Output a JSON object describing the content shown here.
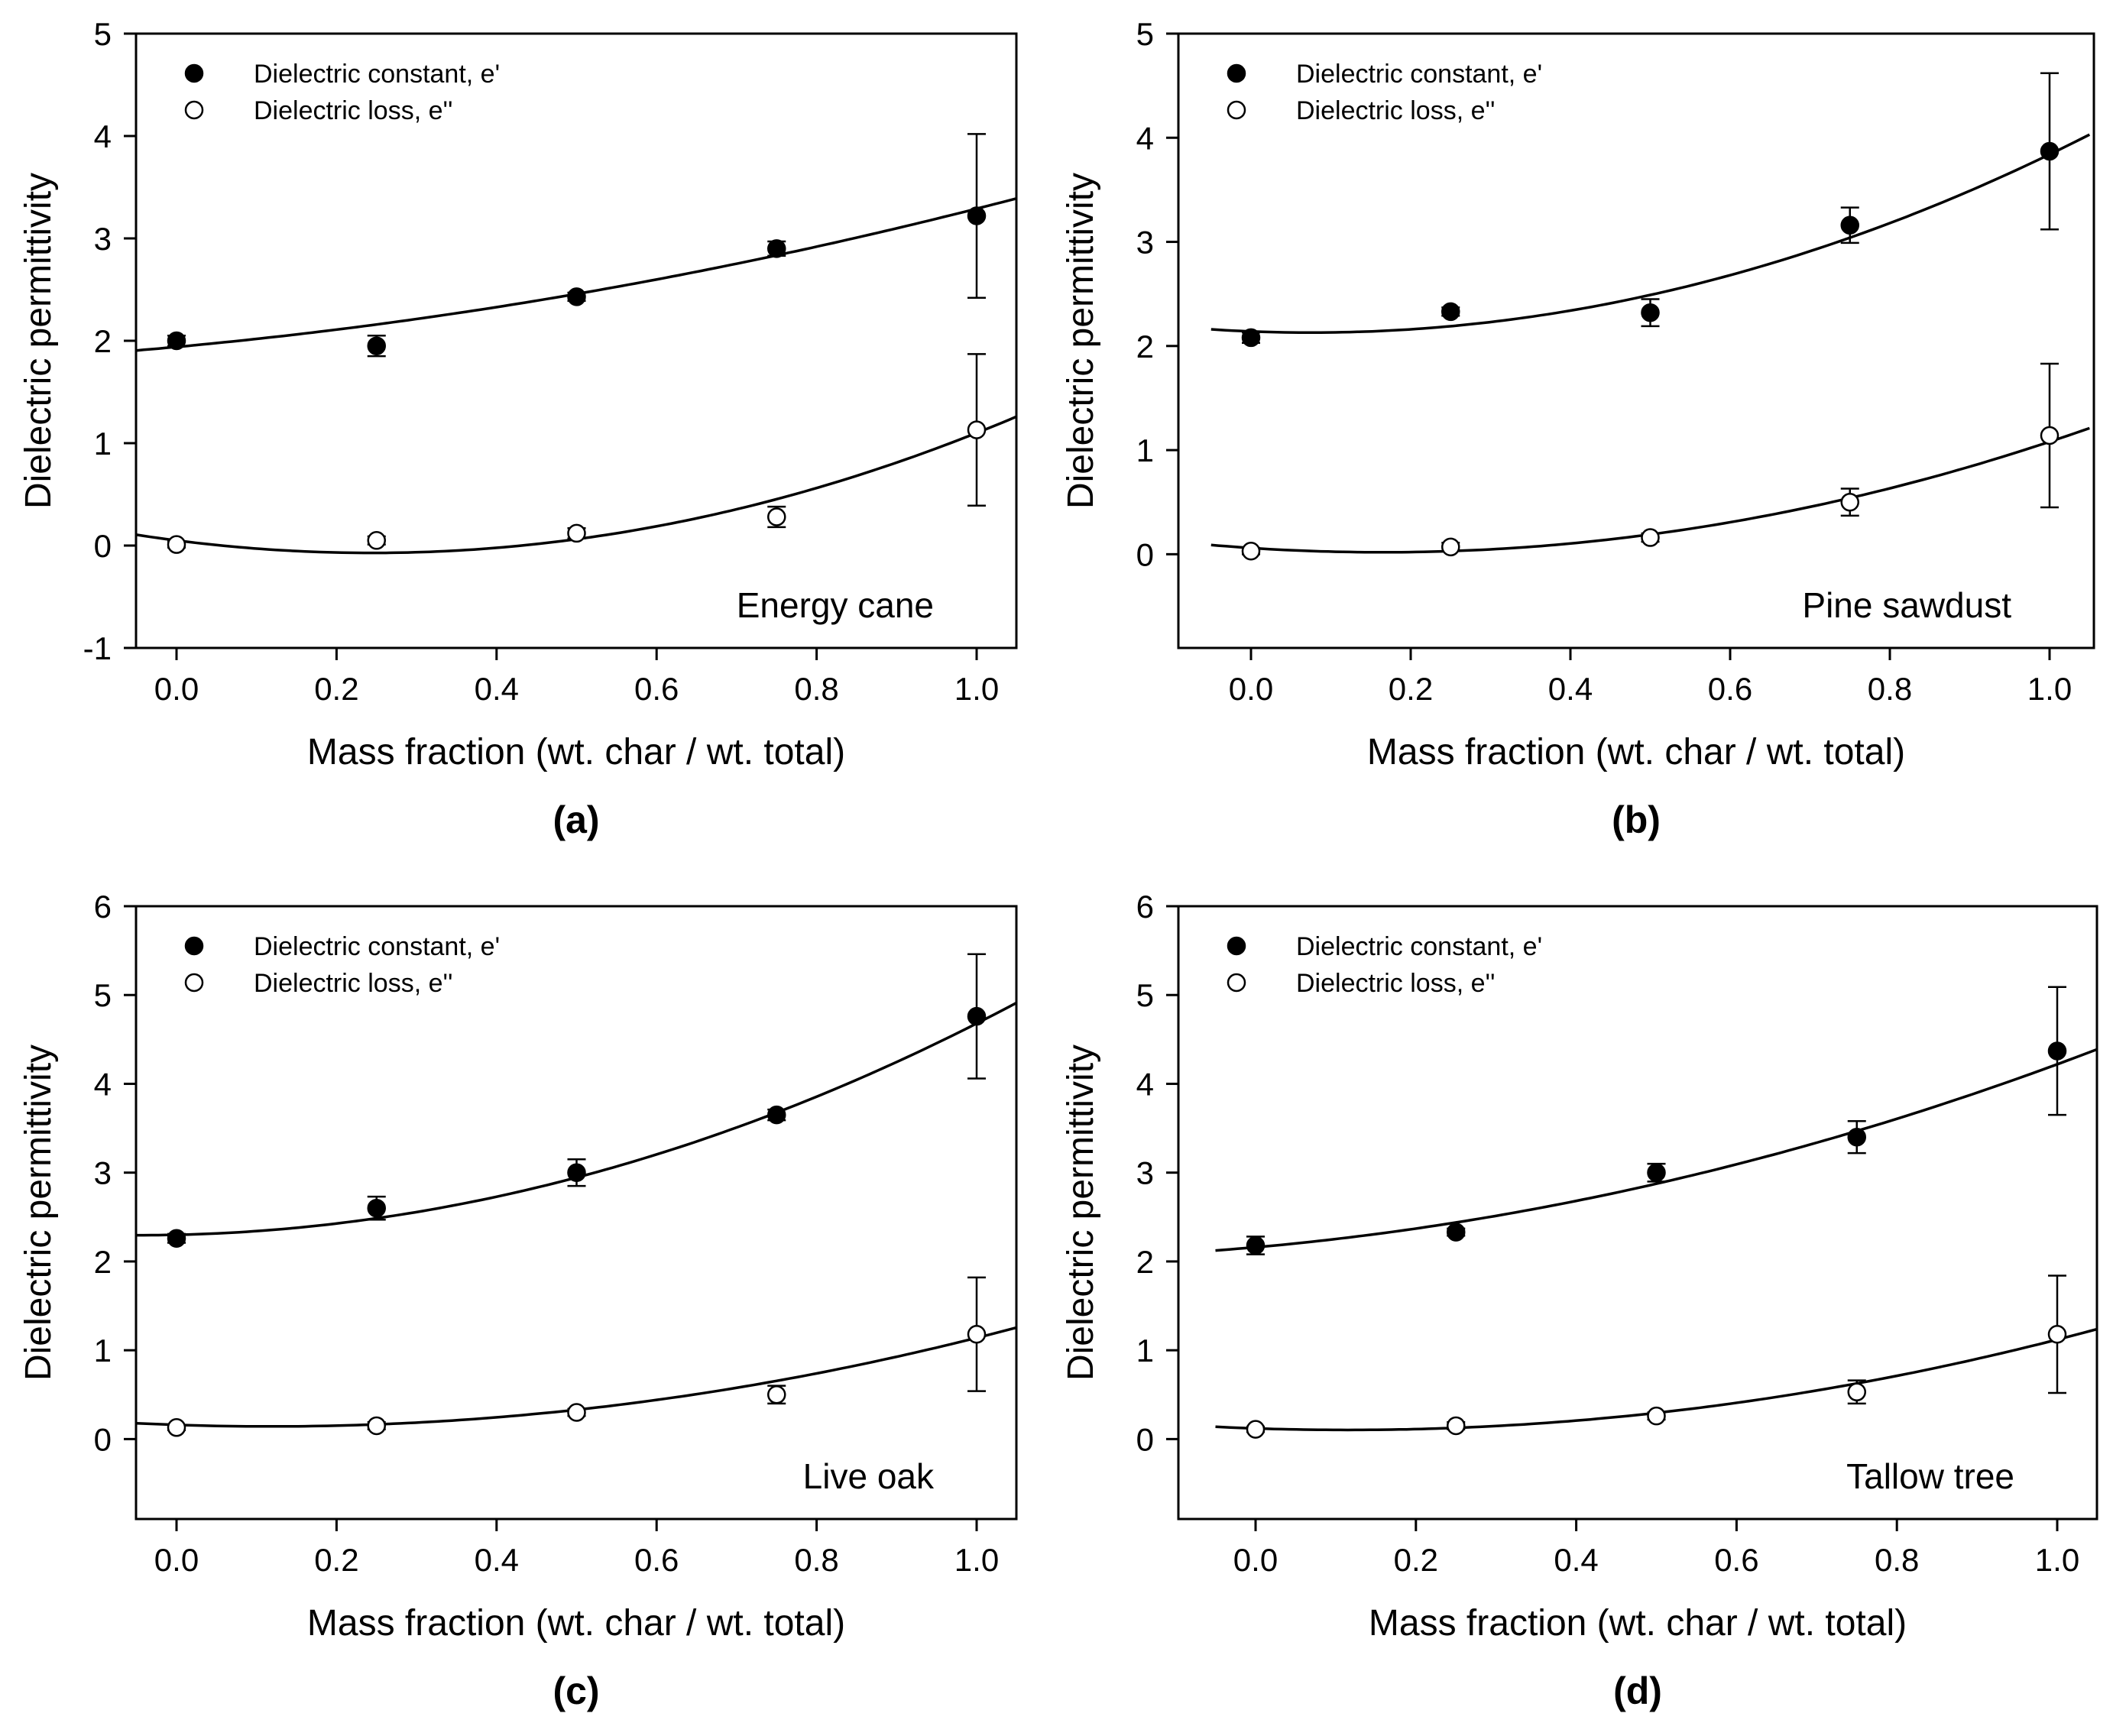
{
  "legend": {
    "constant_label": "Dielectric constant, e'",
    "loss_label": "Dielectric loss, e''"
  },
  "chart_data": [
    {
      "type": "scatter",
      "panel_label": "(a)",
      "annotation": "Energy cane",
      "xlabel": "Mass fraction (wt. char / wt. total)",
      "ylabel": "Dielectric permittivity",
      "xlim": [
        -0.05,
        1.05
      ],
      "ylim": [
        -1,
        5
      ],
      "xticks": [
        "0.0",
        "0.2",
        "0.4",
        "0.6",
        "0.8",
        "1.0"
      ],
      "yticks": [
        "-1",
        "0",
        "1",
        "2",
        "3",
        "4",
        "5"
      ],
      "x": [
        0,
        0.25,
        0.5,
        0.75,
        1.0
      ],
      "series": [
        {
          "name": "Dielectric constant, e'",
          "marker": "filled",
          "values": [
            2.0,
            1.95,
            2.43,
            2.9,
            3.22
          ],
          "errors": [
            0.05,
            0.1,
            0.04,
            0.07,
            0.8
          ],
          "fit": [
            1.94,
            0.72,
            0.63
          ]
        },
        {
          "name": "Dielectric loss, e''",
          "marker": "open",
          "values": [
            0.01,
            0.05,
            0.12,
            0.28,
            1.13
          ],
          "errors": [
            0.03,
            0.04,
            0.05,
            0.1,
            0.74
          ],
          "fit": [
            0.05,
            -1.0,
            2.05
          ]
        }
      ]
    },
    {
      "type": "scatter",
      "panel_label": "(b)",
      "annotation": "Pine sawdust",
      "xlabel": "Mass fraction (wt. char / wt. total)",
      "ylabel": "Dielectric permittivity",
      "xlim": [
        -0.05,
        1.05
      ],
      "ylim": [
        -0.9,
        5
      ],
      "xticks": [
        "0.0",
        "0.2",
        "0.4",
        "0.6",
        "0.8",
        "1.0"
      ],
      "yticks": [
        "0",
        "1",
        "2",
        "3",
        "4",
        "5"
      ],
      "x": [
        0,
        0.25,
        0.5,
        0.75,
        1.0
      ],
      "series": [
        {
          "name": "Dielectric constant, e'",
          "marker": "filled",
          "values": [
            2.08,
            2.33,
            2.32,
            3.16,
            3.87
          ],
          "errors": [
            0.05,
            0.04,
            0.13,
            0.17,
            0.75
          ],
          "fit": [
            2.14,
            -0.3,
            2.0
          ]
        },
        {
          "name": "Dielectric loss, e''",
          "marker": "open",
          "values": [
            0.03,
            0.07,
            0.16,
            0.5,
            1.14
          ],
          "errors": [
            0.03,
            0.04,
            0.04,
            0.13,
            0.69
          ],
          "fit": [
            0.06,
            -0.5,
            1.52
          ]
        }
      ]
    },
    {
      "type": "scatter",
      "panel_label": "(c)",
      "annotation": "Live oak",
      "xlabel": "Mass fraction (wt. char / wt. total)",
      "ylabel": "Dielectric permittivity",
      "xlim": [
        -0.05,
        1.05
      ],
      "ylim": [
        -0.9,
        6
      ],
      "xticks": [
        "0.0",
        "0.2",
        "0.4",
        "0.6",
        "0.8",
        "1.0"
      ],
      "yticks": [
        "0",
        "1",
        "2",
        "3",
        "4",
        "5",
        "6"
      ],
      "x": [
        0,
        0.25,
        0.5,
        0.75,
        1.0
      ],
      "series": [
        {
          "name": "Dielectric constant, e'",
          "marker": "filled",
          "values": [
            2.26,
            2.6,
            3.0,
            3.65,
            4.76
          ],
          "errors": [
            0.05,
            0.13,
            0.15,
            0.06,
            0.7
          ],
          "fit": [
            2.3,
            0.2,
            2.18
          ]
        },
        {
          "name": "Dielectric loss, e''",
          "marker": "open",
          "values": [
            0.13,
            0.15,
            0.3,
            0.5,
            1.18
          ],
          "errors": [
            0.03,
            0.04,
            0.04,
            0.1,
            0.64
          ],
          "fit": [
            0.16,
            -0.3,
            1.28
          ]
        }
      ]
    },
    {
      "type": "scatter",
      "panel_label": "(d)",
      "annotation": "Tallow tree",
      "xlabel": "Mass fraction (wt. char / wt. total)",
      "ylabel": "Dielectric permittivity",
      "xlim": [
        -0.05,
        1.05
      ],
      "ylim": [
        -0.9,
        6
      ],
      "xticks": [
        "0.0",
        "0.2",
        "0.4",
        "0.6",
        "0.8",
        "1.0"
      ],
      "yticks": [
        "0",
        "1",
        "2",
        "3",
        "4",
        "5",
        "6"
      ],
      "x": [
        0,
        0.25,
        0.5,
        0.75,
        1.0
      ],
      "series": [
        {
          "name": "Dielectric constant, e'",
          "marker": "filled",
          "values": [
            2.18,
            2.33,
            3.0,
            3.4,
            4.37
          ],
          "errors": [
            0.1,
            0.04,
            0.1,
            0.18,
            0.72
          ],
          "fit": [
            2.16,
            0.8,
            1.26
          ]
        },
        {
          "name": "Dielectric loss, e''",
          "marker": "open",
          "values": [
            0.11,
            0.15,
            0.26,
            0.53,
            1.18
          ],
          "errors": [
            0.03,
            0.04,
            0.04,
            0.13,
            0.66
          ],
          "fit": [
            0.12,
            -0.3,
            1.3
          ]
        }
      ]
    }
  ]
}
